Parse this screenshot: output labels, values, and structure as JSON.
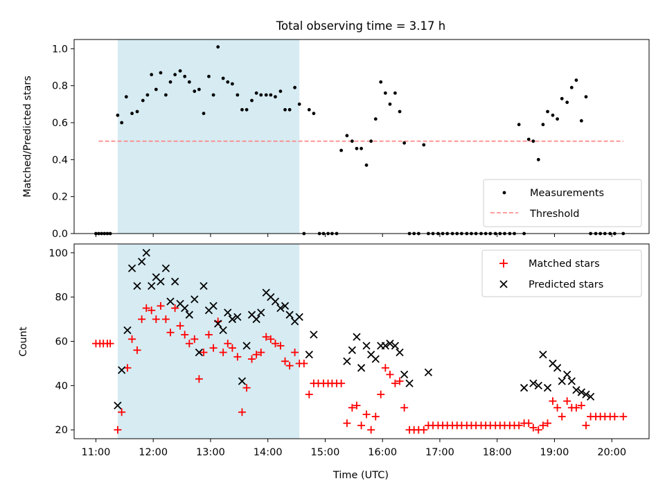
{
  "figure_title": "Total observing time = 3.17 h",
  "colors": {
    "shade": "#add8e6",
    "threshold": "#ff7f7f",
    "matched": "#ff0000",
    "predicted": "#000000",
    "measurement": "#000000"
  },
  "chart_data": [
    {
      "type": "scatter",
      "panel": "top",
      "title": "Total observing time = 3.17 h",
      "xlabel": "",
      "ylabel": "Matched/Predicted stars",
      "xlim": [
        10.62,
        20.65
      ],
      "ylim": [
        0,
        1.05
      ],
      "yticks": [
        0.0,
        0.2,
        0.4,
        0.6,
        0.8,
        1.0
      ],
      "ytick_labels": [
        "0.0",
        "0.2",
        "0.4",
        "0.6",
        "0.8",
        "1.0"
      ],
      "xticks": [
        11,
        12,
        13,
        14,
        15,
        16,
        17,
        18,
        19,
        20
      ],
      "shaded_interval": [
        11.38,
        14.55
      ],
      "legend_position": "lower-right",
      "legend": {
        "measurements": "Measurements",
        "threshold": "Threshold"
      },
      "threshold": {
        "value": 0.5,
        "x_start": 11.05,
        "x_end": 20.2
      },
      "measurements": {
        "x": [
          11.0,
          11.05,
          11.1,
          11.15,
          11.2,
          11.25,
          11.38,
          11.45,
          11.53,
          11.63,
          11.72,
          11.82,
          11.9,
          11.97,
          12.05,
          12.13,
          12.22,
          12.3,
          12.38,
          12.47,
          12.55,
          12.63,
          12.72,
          12.8,
          12.88,
          12.97,
          13.05,
          13.13,
          13.22,
          13.3,
          13.38,
          13.47,
          13.55,
          13.63,
          13.72,
          13.8,
          13.88,
          13.97,
          14.05,
          14.13,
          14.22,
          14.3,
          14.38,
          14.47,
          14.55,
          14.63,
          14.72,
          14.8,
          14.9,
          14.97,
          15.05,
          15.12,
          15.2,
          15.28,
          15.38,
          15.47,
          15.55,
          15.63,
          15.72,
          15.8,
          15.88,
          15.97,
          16.05,
          16.13,
          16.22,
          16.3,
          16.38,
          16.47,
          16.55,
          16.63,
          16.72,
          16.8,
          16.88,
          16.97,
          17.05,
          17.13,
          17.22,
          17.3,
          17.38,
          17.47,
          17.55,
          17.63,
          17.72,
          17.8,
          17.88,
          17.97,
          18.05,
          18.13,
          18.22,
          18.3,
          18.38,
          18.47,
          18.55,
          18.63,
          18.72,
          18.8,
          18.88,
          18.97,
          19.05,
          19.13,
          19.22,
          19.3,
          19.38,
          19.47,
          19.55,
          19.63,
          19.72,
          19.8,
          19.88,
          19.97,
          20.05,
          20.2
        ],
        "y": [
          0.0,
          0.0,
          0.0,
          0.0,
          0.0,
          0.0,
          0.64,
          0.6,
          0.74,
          0.65,
          0.66,
          0.72,
          0.75,
          0.86,
          0.78,
          0.87,
          0.75,
          0.82,
          0.86,
          0.88,
          0.85,
          0.82,
          0.77,
          0.78,
          0.65,
          0.85,
          0.75,
          1.01,
          0.84,
          0.82,
          0.81,
          0.75,
          0.67,
          0.67,
          0.72,
          0.76,
          0.75,
          0.75,
          0.75,
          0.74,
          0.77,
          0.67,
          0.67,
          0.79,
          0.7,
          0.0,
          0.67,
          0.65,
          0.0,
          0.0,
          0.0,
          0.0,
          0.0,
          0.45,
          0.53,
          0.5,
          0.46,
          0.46,
          0.37,
          0.5,
          0.62,
          0.82,
          0.76,
          0.7,
          0.76,
          0.66,
          0.49,
          0.0,
          0.0,
          0.0,
          0.48,
          0.0,
          0.0,
          0.0,
          0.0,
          0.0,
          0.0,
          0.0,
          0.0,
          0.0,
          0.0,
          0.0,
          0.0,
          0.0,
          0.0,
          0.0,
          0.0,
          0.0,
          0.0,
          0.0,
          0.59,
          0.0,
          0.51,
          0.5,
          0.4,
          0.59,
          0.66,
          0.64,
          0.62,
          0.73,
          0.71,
          0.79,
          0.83,
          0.61,
          0.74,
          0.0,
          0.0,
          0.0,
          0.0,
          0.0,
          0.0,
          0.0
        ]
      }
    },
    {
      "type": "scatter",
      "panel": "bottom",
      "xlabel": "Time (UTC)",
      "ylabel": "Count",
      "xlim": [
        10.62,
        20.65
      ],
      "ylim": [
        16,
        104
      ],
      "yticks": [
        20,
        40,
        60,
        80,
        100
      ],
      "ytick_labels": [
        "20",
        "40",
        "60",
        "80",
        "100"
      ],
      "xticks": [
        11,
        12,
        13,
        14,
        15,
        16,
        17,
        18,
        19,
        20
      ],
      "xtick_labels": [
        "11:00",
        "12:00",
        "13:00",
        "14:00",
        "15:00",
        "16:00",
        "17:00",
        "18:00",
        "19:00",
        "20:00"
      ],
      "shaded_interval": [
        11.38,
        14.55
      ],
      "legend_position": "upper-right",
      "series": [
        {
          "name": "Matched stars",
          "marker": "+",
          "x": [
            11.0,
            11.07,
            11.13,
            11.2,
            11.25,
            11.38,
            11.45,
            11.55,
            11.63,
            11.72,
            11.8,
            11.88,
            11.97,
            12.05,
            12.13,
            12.22,
            12.3,
            12.38,
            12.47,
            12.55,
            12.63,
            12.72,
            12.8,
            12.88,
            12.97,
            13.05,
            13.13,
            13.22,
            13.3,
            13.38,
            13.47,
            13.55,
            13.63,
            13.72,
            13.8,
            13.88,
            13.97,
            14.05,
            14.13,
            14.22,
            14.3,
            14.38,
            14.47,
            14.55,
            14.63,
            14.72,
            14.8,
            14.88,
            14.97,
            15.05,
            15.12,
            15.2,
            15.28,
            15.38,
            15.47,
            15.55,
            15.63,
            15.72,
            15.8,
            15.88,
            15.97,
            16.05,
            16.13,
            16.22,
            16.3,
            16.38,
            16.47,
            16.55,
            16.63,
            16.72,
            16.8,
            16.88,
            16.97,
            17.05,
            17.13,
            17.22,
            17.3,
            17.38,
            17.47,
            17.55,
            17.63,
            17.72,
            17.8,
            17.88,
            17.97,
            18.05,
            18.13,
            18.22,
            18.3,
            18.38,
            18.47,
            18.55,
            18.63,
            18.72,
            18.8,
            18.88,
            18.97,
            19.05,
            19.13,
            19.22,
            19.3,
            19.38,
            19.47,
            19.55,
            19.63,
            19.72,
            19.8,
            19.88,
            19.97,
            20.05,
            20.2
          ],
          "y": [
            59,
            59,
            59,
            59,
            59,
            20,
            28,
            48,
            61,
            56,
            70,
            75,
            74,
            70,
            76,
            70,
            64,
            75,
            67,
            63,
            59,
            61,
            43,
            55,
            63,
            57,
            69,
            55,
            59,
            57,
            53,
            28,
            39,
            52,
            54,
            55,
            62,
            61,
            59,
            58,
            51,
            49,
            55,
            50,
            50,
            36,
            41,
            41,
            41,
            41,
            41,
            41,
            41,
            23,
            30,
            31,
            22,
            27,
            20,
            26,
            36,
            48,
            45,
            41,
            42,
            30,
            20,
            20,
            20,
            20,
            22,
            22,
            22,
            22,
            22,
            22,
            22,
            22,
            22,
            22,
            22,
            22,
            22,
            22,
            22,
            22,
            22,
            22,
            22,
            22,
            23,
            23,
            21,
            20,
            22,
            23,
            33,
            30,
            26,
            33,
            30,
            30,
            31,
            22,
            26,
            26,
            26,
            26,
            26,
            26,
            26
          ]
        },
        {
          "name": "Predicted stars",
          "marker": "x",
          "x": [
            11.38,
            11.45,
            11.55,
            11.63,
            11.72,
            11.8,
            11.88,
            11.97,
            12.05,
            12.13,
            12.22,
            12.3,
            12.38,
            12.47,
            12.55,
            12.63,
            12.72,
            12.8,
            12.88,
            12.97,
            13.05,
            13.13,
            13.22,
            13.3,
            13.38,
            13.47,
            13.55,
            13.63,
            13.72,
            13.8,
            13.88,
            13.97,
            14.05,
            14.13,
            14.22,
            14.3,
            14.38,
            14.47,
            14.55,
            14.72,
            14.8,
            15.38,
            15.47,
            15.55,
            15.63,
            15.72,
            15.8,
            15.88,
            15.97,
            16.05,
            16.13,
            16.22,
            16.3,
            16.38,
            16.47,
            16.8,
            18.47,
            18.63,
            18.72,
            18.8,
            18.88,
            18.97,
            19.05,
            19.13,
            19.22,
            19.3,
            19.38,
            19.47,
            19.55,
            19.63
          ],
          "y": [
            31,
            47,
            65,
            93,
            85,
            96,
            100,
            85,
            89,
            87,
            93,
            78,
            87,
            77,
            75,
            72,
            79,
            55,
            85,
            74,
            76,
            68,
            65,
            73,
            70,
            71,
            42,
            58,
            72,
            70,
            73,
            82,
            80,
            78,
            75,
            76,
            72,
            69,
            71,
            54,
            63,
            51,
            56,
            62,
            48,
            58,
            54,
            52,
            58,
            58,
            59,
            58,
            55,
            45,
            41,
            46,
            39,
            41,
            40,
            54,
            39,
            50,
            48,
            42,
            45,
            42,
            38,
            37,
            36,
            35
          ]
        }
      ]
    }
  ]
}
